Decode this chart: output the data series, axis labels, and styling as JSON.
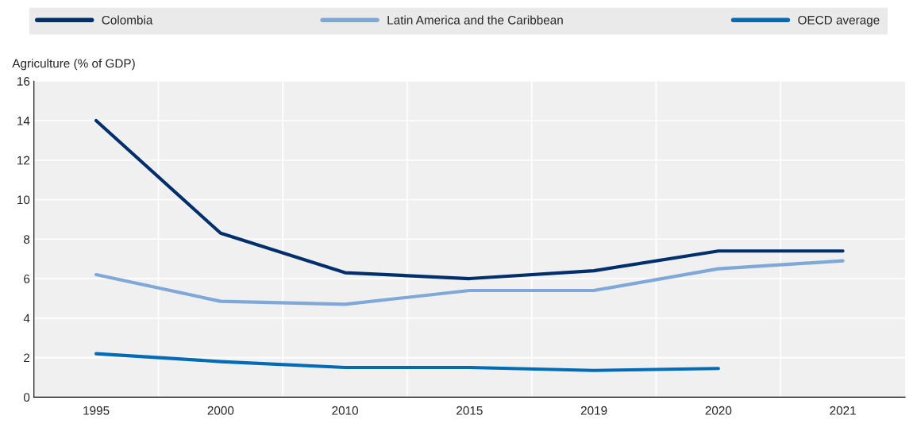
{
  "chart_data": {
    "type": "line",
    "ylabel": "Agriculture (% of GDP)",
    "categories": [
      "1995",
      "2000",
      "2010",
      "2015",
      "2019",
      "2020",
      "2021"
    ],
    "series": [
      {
        "name": "Colombia",
        "color": "#002f6c",
        "values": [
          14.0,
          8.3,
          6.3,
          6.0,
          6.4,
          7.4,
          7.4
        ]
      },
      {
        "name": "Latin America and the Caribbean",
        "color": "#7fa8d9",
        "values": [
          6.2,
          4.85,
          4.7,
          5.4,
          5.4,
          6.5,
          6.9
        ]
      },
      {
        "name": "OECD average",
        "color": "#006bb6",
        "values": [
          2.2,
          1.8,
          1.5,
          1.5,
          1.35,
          1.45,
          null
        ]
      }
    ],
    "ylim": [
      0,
      16
    ],
    "yticks": [
      0,
      2,
      4,
      6,
      8,
      10,
      12,
      14,
      16
    ],
    "grid": true,
    "legend": "top",
    "marker": "none",
    "line_style": "solid"
  }
}
